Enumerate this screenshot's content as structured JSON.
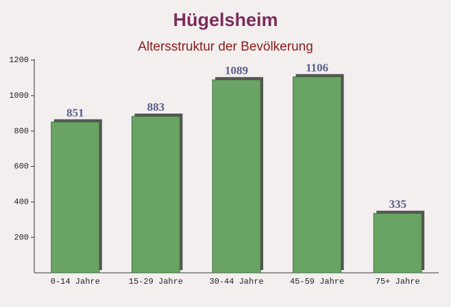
{
  "chart_data": {
    "type": "bar",
    "title": "Hügelsheim",
    "subtitle": "Altersstruktur der Bevölkerung",
    "categories": [
      "0-14 Jahre",
      "15-29 Jahre",
      "30-44 Jahre",
      "45-59 Jahre",
      "75+ Jahre"
    ],
    "values": [
      851,
      883,
      1089,
      1106,
      335
    ],
    "color": "#6aa464",
    "ylim": [
      0,
      1200
    ],
    "yticks": [
      200,
      400,
      600,
      800,
      1000,
      1200
    ],
    "grid": false
  }
}
